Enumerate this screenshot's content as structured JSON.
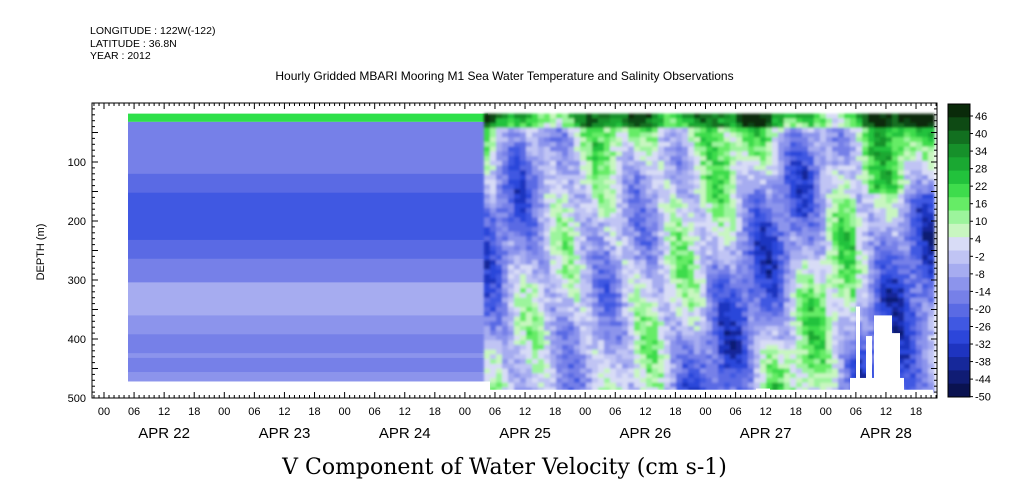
{
  "header": {
    "longitude": "LONGITUDE : 122W(-122)",
    "latitude": "LATITUDE : 36.8N",
    "year": "YEAR : 2012",
    "title": "Hourly Gridded MBARI Mooring M1 Sea Water Temperature and Salinity Observations"
  },
  "chart_data": {
    "type": "heatmap",
    "title": "Hourly Gridded MBARI Mooring M1 Sea Water Temperature and Salinity Observations",
    "xlabel": "V Component of Water Velocity (cm s-1)",
    "ylabel": "DEPTH (m)",
    "ylim": [
      500,
      0
    ],
    "y_ticks": [
      100,
      200,
      300,
      400,
      500
    ],
    "hour_ticks": [
      "00",
      "06",
      "12",
      "18",
      "00",
      "06",
      "12",
      "18",
      "00",
      "06",
      "12",
      "18",
      "00",
      "06",
      "12",
      "18",
      "00",
      "06",
      "12",
      "18",
      "00",
      "06",
      "12",
      "18",
      "00",
      "06",
      "12",
      "18"
    ],
    "day_labels": [
      "APR 22",
      "APR 23",
      "APR 24",
      "APR 25",
      "APR 26",
      "APR 27",
      "APR 28"
    ],
    "colorbar": {
      "labels": [
        46,
        40,
        34,
        28,
        22,
        16,
        10,
        4,
        -2,
        -8,
        -14,
        -20,
        -26,
        -32,
        -38,
        -44,
        -50
      ],
      "colors": [
        "#0a2a0a",
        "#0e4a14",
        "#127020",
        "#16902a",
        "#1aa832",
        "#22c23c",
        "#3edc4c",
        "#66ec66",
        "#9cf49c",
        "#c8f6c0",
        "#d8dcf6",
        "#c0c4f4",
        "#a6acf0",
        "#8c94ec",
        "#7680e8",
        "#5a6ae4",
        "#4058e2",
        "#2c46da",
        "#1e34c0",
        "#16289a",
        "#101c74",
        "#0a1250"
      ]
    },
    "grid": false
  }
}
